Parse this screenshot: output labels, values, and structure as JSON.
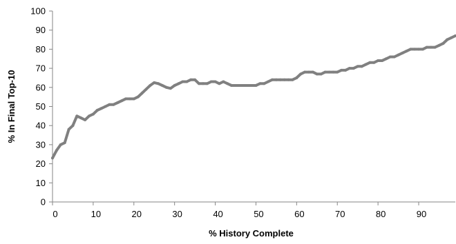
{
  "chart_data": {
    "type": "line",
    "xlabel": "% History Complete",
    "ylabel": "% In Final Top-10",
    "xlim": [
      0,
      99
    ],
    "ylim": [
      0,
      100
    ],
    "x_ticks": [
      0,
      10,
      20,
      30,
      40,
      50,
      60,
      70,
      80,
      90
    ],
    "y_ticks": [
      0,
      10,
      20,
      30,
      40,
      50,
      60,
      70,
      80,
      90,
      100
    ],
    "grid": false,
    "legend": "none",
    "series": [
      {
        "color": "#808080",
        "x": [
          0,
          1,
          2,
          3,
          4,
          5,
          6,
          7,
          8,
          9,
          10,
          11,
          12,
          13,
          14,
          15,
          16,
          17,
          18,
          19,
          20,
          21,
          22,
          23,
          24,
          25,
          26,
          27,
          28,
          29,
          30,
          31,
          32,
          33,
          34,
          35,
          36,
          37,
          38,
          39,
          40,
          41,
          42,
          43,
          44,
          45,
          46,
          47,
          48,
          49,
          50,
          51,
          52,
          53,
          54,
          55,
          56,
          57,
          58,
          59,
          60,
          61,
          62,
          63,
          64,
          65,
          66,
          67,
          68,
          69,
          70,
          71,
          72,
          73,
          74,
          75,
          76,
          77,
          78,
          79,
          80,
          81,
          82,
          83,
          84,
          85,
          86,
          87,
          88,
          89,
          90,
          91,
          92,
          93,
          94,
          95,
          96,
          97,
          98,
          99
        ],
        "values": [
          23,
          27,
          30,
          31,
          38,
          40,
          45,
          44,
          43,
          45,
          46,
          48,
          49,
          50,
          51,
          51,
          52,
          53,
          54,
          54,
          54,
          55,
          57,
          59,
          61,
          62.5,
          62,
          61,
          60,
          59.5,
          61,
          62,
          63,
          63,
          64,
          64,
          62,
          62,
          62,
          63,
          63,
          62,
          63,
          62,
          61,
          61,
          61,
          61,
          61,
          61,
          61,
          62,
          62,
          63,
          64,
          64,
          64,
          64,
          64,
          64,
          65,
          67,
          68,
          68,
          68,
          67,
          67,
          68,
          68,
          68,
          68,
          69,
          69,
          70,
          70,
          71,
          71,
          72,
          73,
          73,
          74,
          74,
          75,
          76,
          76,
          77,
          78,
          79,
          80,
          80,
          80,
          80,
          81,
          81,
          81,
          82,
          83,
          85,
          86,
          87
        ]
      }
    ]
  }
}
